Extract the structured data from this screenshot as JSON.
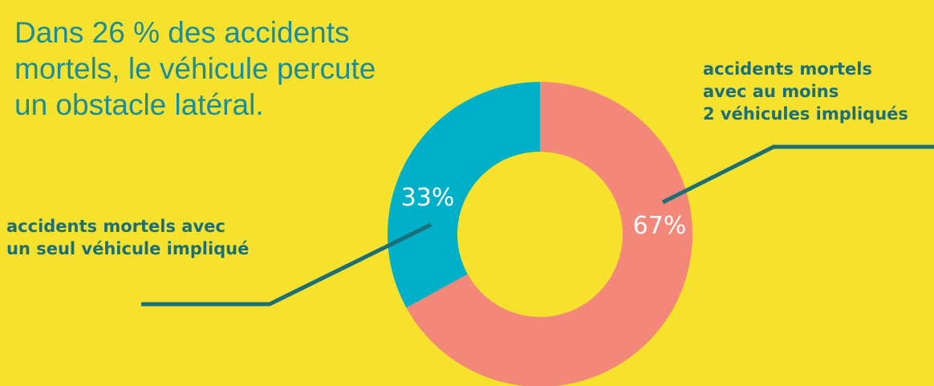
{
  "headline": "Dans  26 % des accidents\nmortels, le véhicule percute\nun obstacle latéral.",
  "colors": {
    "background": "#f6e12c",
    "headline_text": "#1a8c9a",
    "callout_text": "#1a6f7a",
    "leader_line": "#1a6f7a"
  },
  "chart_data": {
    "type": "pie",
    "donut": true,
    "slices": [
      {
        "label": "accidents mortels\navec au moins\n2 véhicules impliqués",
        "value": 67,
        "value_label": "67%",
        "color": "#f3877a"
      },
      {
        "label": "accidents mortels avec\nun seul véhicule impliqué",
        "value": 33,
        "value_label": "33%",
        "color": "#00b0c8"
      }
    ]
  }
}
